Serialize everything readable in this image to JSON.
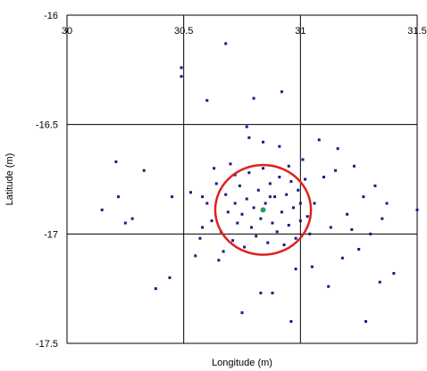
{
  "chart_data": {
    "type": "scatter",
    "xlabel": "Longitude (m)",
    "ylabel": "Latitude (m)",
    "xlim": [
      30,
      31.5
    ],
    "ylim": [
      -17.5,
      -16
    ],
    "x_ticks": [
      30,
      30.5,
      31,
      31.5
    ],
    "y_ticks": [
      -16,
      -16.5,
      -17,
      -17.5
    ],
    "x_tick_labels": [
      "30",
      "30.5",
      "31",
      "31.5"
    ],
    "y_tick_labels": [
      "-16",
      "-16.5",
      "-17",
      "-17.5"
    ],
    "grid": true,
    "series": [
      {
        "color": "#1a1a80",
        "marker": "square",
        "points": [
          [
            30.15,
            -16.89
          ],
          [
            30.21,
            -16.67
          ],
          [
            30.22,
            -16.83
          ],
          [
            30.25,
            -16.95
          ],
          [
            30.28,
            -16.93
          ],
          [
            30.33,
            -16.71
          ],
          [
            30.38,
            -17.25
          ],
          [
            30.44,
            -17.2
          ],
          [
            30.45,
            -16.83
          ],
          [
            30.49,
            -16.24
          ],
          [
            30.49,
            -16.28
          ],
          [
            30.53,
            -16.81
          ],
          [
            30.55,
            -17.1
          ],
          [
            30.57,
            -17.02
          ],
          [
            30.58,
            -16.83
          ],
          [
            30.58,
            -16.97
          ],
          [
            30.6,
            -16.39
          ],
          [
            30.63,
            -16.7
          ],
          [
            30.65,
            -17.12
          ],
          [
            30.67,
            -17.08
          ],
          [
            30.68,
            -16.13
          ],
          [
            30.72,
            -16.73
          ],
          [
            30.75,
            -17.36
          ],
          [
            30.77,
            -16.51
          ],
          [
            30.78,
            -16.56
          ],
          [
            30.8,
            -16.38
          ],
          [
            30.83,
            -17.27
          ],
          [
            30.84,
            -16.58
          ],
          [
            30.87,
            -16.83
          ],
          [
            30.88,
            -17.27
          ],
          [
            30.91,
            -16.6
          ],
          [
            30.92,
            -16.35
          ],
          [
            30.95,
            -16.69
          ],
          [
            30.96,
            -17.4
          ],
          [
            30.98,
            -17.16
          ],
          [
            31.0,
            -16.86
          ],
          [
            31.01,
            -16.66
          ],
          [
            31.03,
            -16.92
          ],
          [
            31.05,
            -17.15
          ],
          [
            31.08,
            -16.57
          ],
          [
            31.1,
            -16.74
          ],
          [
            31.12,
            -17.24
          ],
          [
            31.13,
            -16.97
          ],
          [
            31.15,
            -16.71
          ],
          [
            31.16,
            -16.61
          ],
          [
            31.18,
            -17.11
          ],
          [
            31.2,
            -16.91
          ],
          [
            31.22,
            -16.98
          ],
          [
            31.23,
            -16.69
          ],
          [
            31.25,
            -17.07
          ],
          [
            31.27,
            -16.83
          ],
          [
            31.28,
            -17.4
          ],
          [
            31.3,
            -17.0
          ],
          [
            31.32,
            -16.78
          ],
          [
            31.34,
            -17.22
          ],
          [
            31.35,
            -16.93
          ],
          [
            31.37,
            -16.86
          ],
          [
            31.4,
            -17.18
          ],
          [
            31.5,
            -16.89
          ],
          [
            30.6,
            -16.86
          ],
          [
            30.62,
            -16.94
          ],
          [
            30.64,
            -16.77
          ],
          [
            30.66,
            -16.99
          ],
          [
            30.68,
            -16.82
          ],
          [
            30.69,
            -16.9
          ],
          [
            30.7,
            -16.68
          ],
          [
            30.71,
            -17.03
          ],
          [
            30.72,
            -16.86
          ],
          [
            30.73,
            -16.95
          ],
          [
            30.74,
            -16.78
          ],
          [
            30.75,
            -16.91
          ],
          [
            30.76,
            -17.06
          ],
          [
            30.77,
            -16.84
          ],
          [
            30.78,
            -16.72
          ],
          [
            30.79,
            -16.97
          ],
          [
            30.8,
            -16.88
          ],
          [
            30.81,
            -17.01
          ],
          [
            30.82,
            -16.8
          ],
          [
            30.83,
            -16.93
          ],
          [
            30.84,
            -16.7
          ],
          [
            30.85,
            -16.86
          ],
          [
            30.86,
            -17.04
          ],
          [
            30.87,
            -16.77
          ],
          [
            30.88,
            -16.95
          ],
          [
            30.89,
            -16.83
          ],
          [
            30.9,
            -16.99
          ],
          [
            30.91,
            -16.74
          ],
          [
            30.92,
            -16.9
          ],
          [
            30.93,
            -17.05
          ],
          [
            30.94,
            -16.82
          ],
          [
            30.95,
            -16.96
          ],
          [
            30.96,
            -16.76
          ],
          [
            30.97,
            -16.88
          ],
          [
            30.98,
            -17.02
          ],
          [
            30.99,
            -16.8
          ],
          [
            31.0,
            -16.94
          ],
          [
            31.02,
            -16.75
          ],
          [
            31.04,
            -17.0
          ],
          [
            31.06,
            -16.86
          ]
        ]
      }
    ],
    "circle": {
      "center": [
        30.84,
        -16.89
      ],
      "radius": 0.205,
      "color": "#e02020"
    },
    "center_point": {
      "x": 30.84,
      "y": -16.89,
      "color": "#2aa060"
    }
  }
}
